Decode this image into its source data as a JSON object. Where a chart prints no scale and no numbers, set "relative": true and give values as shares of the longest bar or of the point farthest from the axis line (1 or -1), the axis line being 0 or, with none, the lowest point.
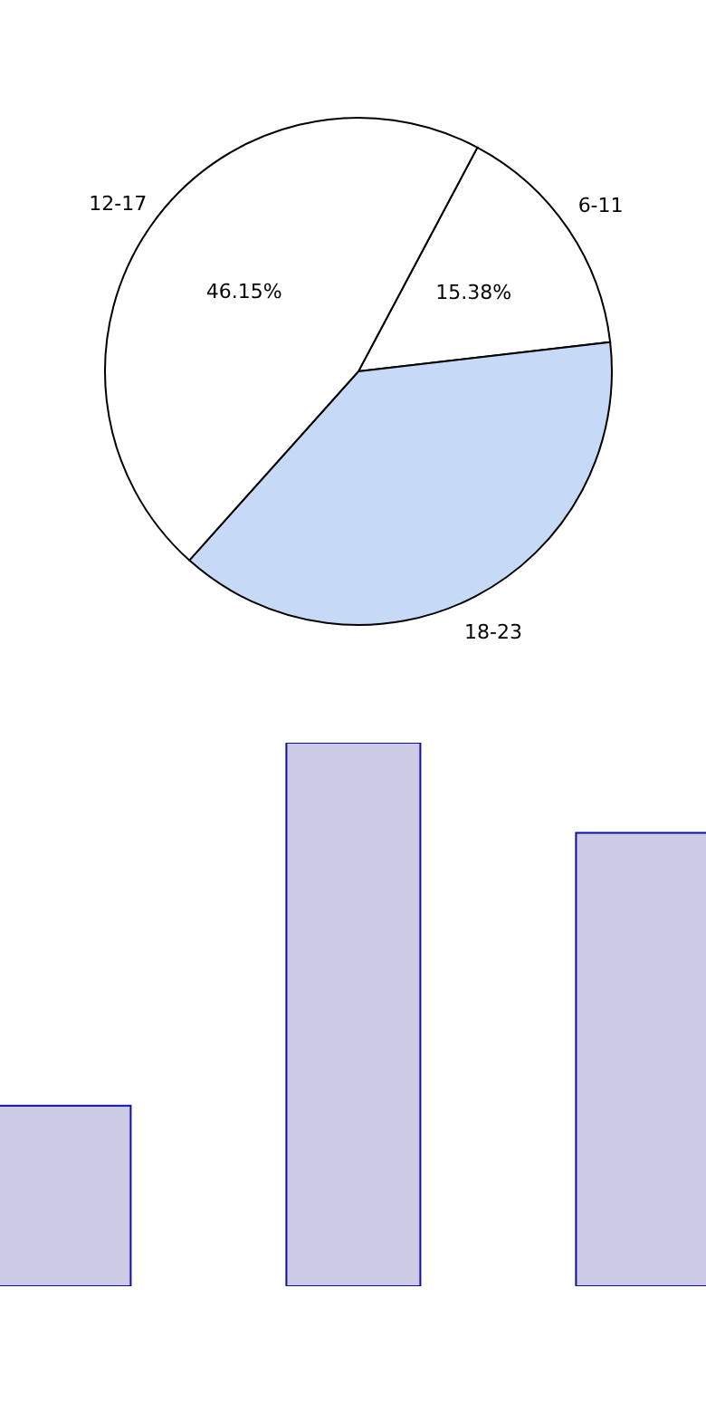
{
  "chart_data": [
    {
      "type": "pie",
      "categories": [
        "6-11",
        "18-23",
        "12-17"
      ],
      "values": [
        15.38,
        38.46,
        46.15
      ],
      "colors": [
        "#ffffff",
        "#c6d9f7",
        "#ffffff"
      ],
      "value_labels": [
        "15.38%",
        null,
        "46.15%"
      ],
      "legend": false
    },
    {
      "type": "bar",
      "relative": true,
      "categories": [
        null,
        null,
        null
      ],
      "values": [
        0.332,
        1,
        0.834
      ],
      "color": "#ccccE6",
      "legend": false,
      "grid": false
    }
  ]
}
